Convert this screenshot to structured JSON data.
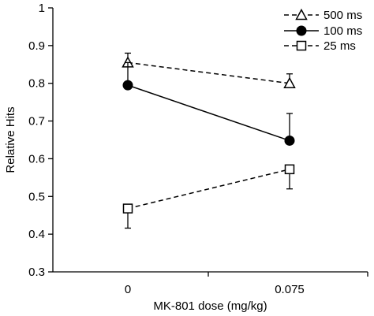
{
  "chart_data": {
    "type": "line",
    "xlabel": "MK-801 dose (mg/kg)",
    "ylabel": "Relative Hits",
    "categories": [
      "0",
      "0.075"
    ],
    "ylim": [
      0.3,
      1
    ],
    "yticks": [
      "0.3",
      "0.4",
      "0.5",
      "0.6",
      "0.7",
      "0.8",
      "0.9",
      "1"
    ],
    "legend_position": "top-right",
    "series": [
      {
        "name": "500 ms",
        "values": [
          0.855,
          0.8
        ],
        "error": [
          0.025,
          0.025
        ],
        "marker": "triangle-open",
        "line": "dashed"
      },
      {
        "name": "100 ms",
        "values": [
          0.795,
          0.648
        ],
        "error": [
          0.06,
          0.072
        ],
        "marker": "circle-filled",
        "line": "solid"
      },
      {
        "name": "25 ms",
        "values": [
          0.468,
          0.572
        ],
        "error": [
          0.052,
          0.052
        ],
        "marker": "square-open",
        "line": "dashed"
      }
    ]
  }
}
